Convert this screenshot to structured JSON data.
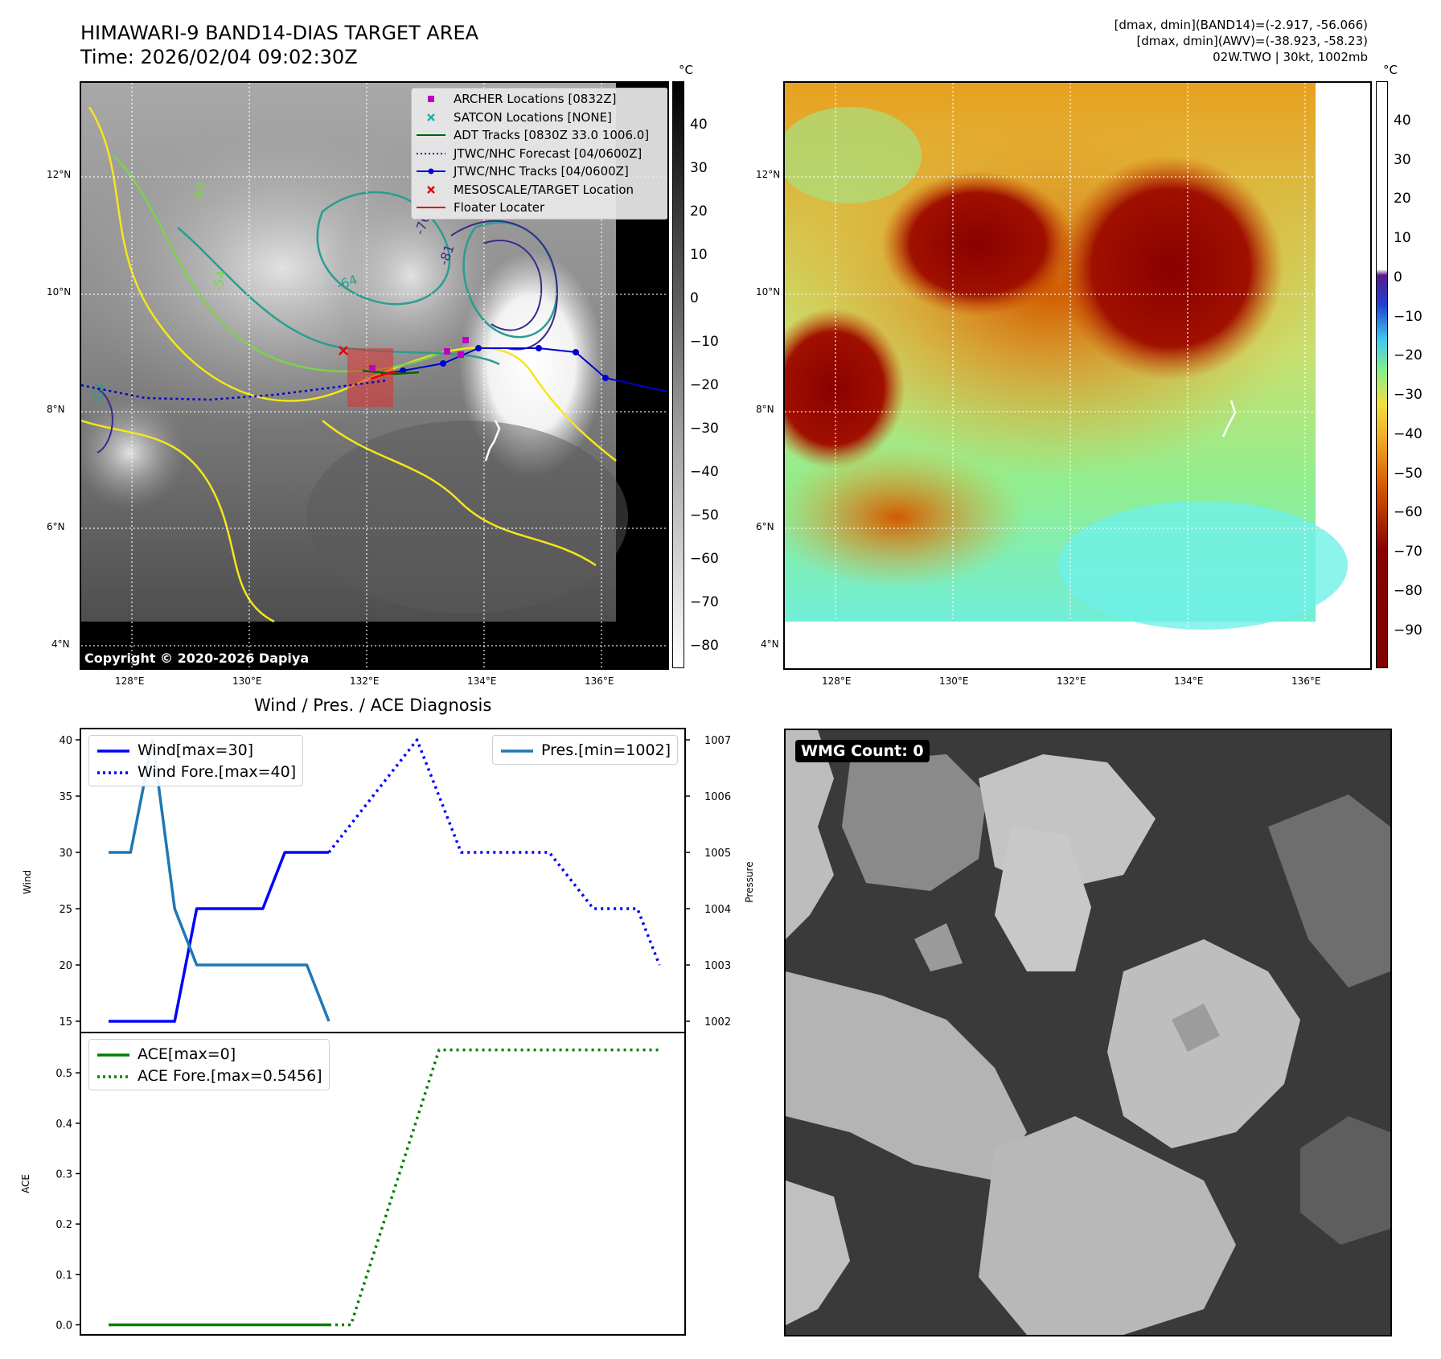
{
  "header": {
    "title_line1": "HIMAWARI-9 BAND14-DIAS TARGET AREA",
    "title_line2": "Time: 2026/02/04 09:02:30Z"
  },
  "info": {
    "line1": "[dmax, dmin](BAND14)=(-2.917, -56.066)",
    "line2": "[dmax, dmin](AWV)=(-38.923, -58.23)",
    "line3": "02W.TWO | 30kt, 1002mb"
  },
  "colorbar_unit": "°C",
  "left_colorbar_ticks": [
    "40",
    "30",
    "20",
    "10",
    "0",
    "−10",
    "−20",
    "−30",
    "−40",
    "−50",
    "−60",
    "−70",
    "−80"
  ],
  "right_colorbar_ticks": [
    "40",
    "30",
    "20",
    "10",
    "0",
    "−10",
    "−20",
    "−30",
    "−40",
    "−50",
    "−60",
    "−70",
    "−80",
    "−90"
  ],
  "map": {
    "lon_labels": [
      "128°E",
      "130°E",
      "132°E",
      "134°E",
      "136°E"
    ],
    "lat_labels": [
      "12°N",
      "10°N",
      "8°N",
      "6°N",
      "4°N"
    ],
    "contour_labels": [
      "-76",
      "-81",
      "-64",
      "-54",
      "-49",
      "-64"
    ],
    "copyright": "Copyright © 2020-2026 Dapiya",
    "legend": [
      {
        "label": "ARCHER Locations [0832Z]",
        "color": "#c000c0",
        "symbol": "square"
      },
      {
        "label": "SATCON Locations [NONE]",
        "color": "#20b0b0",
        "symbol": "x"
      },
      {
        "label": "ADT Tracks [0830Z 33.0 1006.0]",
        "color": "#006400",
        "symbol": "line"
      },
      {
        "label": "JTWC/NHC Forecast [04/0600Z]",
        "color": "#0000d0",
        "symbol": "dotted"
      },
      {
        "label": "JTWC/NHC Tracks [04/0600Z]",
        "color": "#0000d0",
        "symbol": "line-dot"
      },
      {
        "label": "MESOSCALE/TARGET Location",
        "color": "#e00000",
        "symbol": "x"
      },
      {
        "label": "Floater Locater",
        "color": "#e00000",
        "symbol": "line"
      }
    ]
  },
  "diag": {
    "title": "Wind / Pres. / ACE Diagnosis",
    "wind_ylabel": "Wind",
    "pres_ylabel": "Pressure",
    "ace_ylabel": "ACE",
    "wind_ticks": [
      "40",
      "35",
      "30",
      "25",
      "20",
      "15"
    ],
    "pres_ticks": [
      "1007",
      "1006",
      "1005",
      "1004",
      "1003",
      "1002"
    ],
    "ace_ticks": [
      "0.5",
      "0.4",
      "0.3",
      "0.2",
      "0.1",
      "0.0"
    ],
    "legend_wind": "Wind[max=30]",
    "legend_wind_fore": "Wind Fore.[max=40]",
    "legend_pres": "Pres.[min=1002]",
    "legend_ace": "ACE[max=0]",
    "legend_ace_fore": "ACE Fore.[max=0.5456]"
  },
  "wmg": {
    "label": "WMG Count: 0"
  },
  "chart_data": [
    {
      "type": "line",
      "title": "Wind / Pres. / ACE Diagnosis",
      "ylabel": "Wind",
      "ylim": [
        14,
        41
      ],
      "x": [
        0,
        1,
        2,
        3,
        4,
        5,
        6,
        7,
        8,
        9,
        10,
        11,
        12,
        13,
        14,
        15,
        16,
        17,
        18,
        19,
        20,
        21,
        22,
        23,
        24,
        25
      ],
      "series": [
        {
          "name": "Wind[max=30]",
          "color": "#0000ff",
          "style": "solid",
          "x": [
            0,
            1,
            2,
            3,
            4,
            5,
            6,
            7,
            8,
            9,
            10
          ],
          "values": [
            15,
            15,
            15,
            15,
            25,
            25,
            25,
            25,
            30,
            30,
            30
          ]
        },
        {
          "name": "Wind Fore.[max=40]",
          "color": "#0000ff",
          "style": "dotted",
          "x": [
            10,
            14,
            16,
            20,
            22,
            23,
            24,
            25
          ],
          "values": [
            30,
            40,
            30,
            30,
            25,
            25,
            25,
            20
          ]
        }
      ]
    },
    {
      "type": "line",
      "ylabel": "Pressure",
      "ylim": [
        1001.8,
        1007.2
      ],
      "series": [
        {
          "name": "Pres.[min=1002]",
          "color": "#1f77b4",
          "style": "solid",
          "x": [
            0,
            1,
            2,
            3,
            4,
            5,
            6,
            7,
            8,
            9,
            10
          ],
          "values": [
            1005,
            1005,
            1007,
            1004,
            1003,
            1003,
            1003,
            1003,
            1003,
            1003,
            1002
          ]
        }
      ]
    },
    {
      "type": "line",
      "ylabel": "ACE",
      "ylim": [
        -0.02,
        0.58
      ],
      "series": [
        {
          "name": "ACE[max=0]",
          "color": "#008000",
          "style": "solid",
          "x": [
            0,
            10
          ],
          "values": [
            0,
            0
          ]
        },
        {
          "name": "ACE Fore.[max=0.5456]",
          "color": "#008000",
          "style": "dotted",
          "x": [
            10,
            11,
            15,
            25
          ],
          "values": [
            0,
            0,
            0.5456,
            0.5456
          ]
        }
      ]
    }
  ]
}
